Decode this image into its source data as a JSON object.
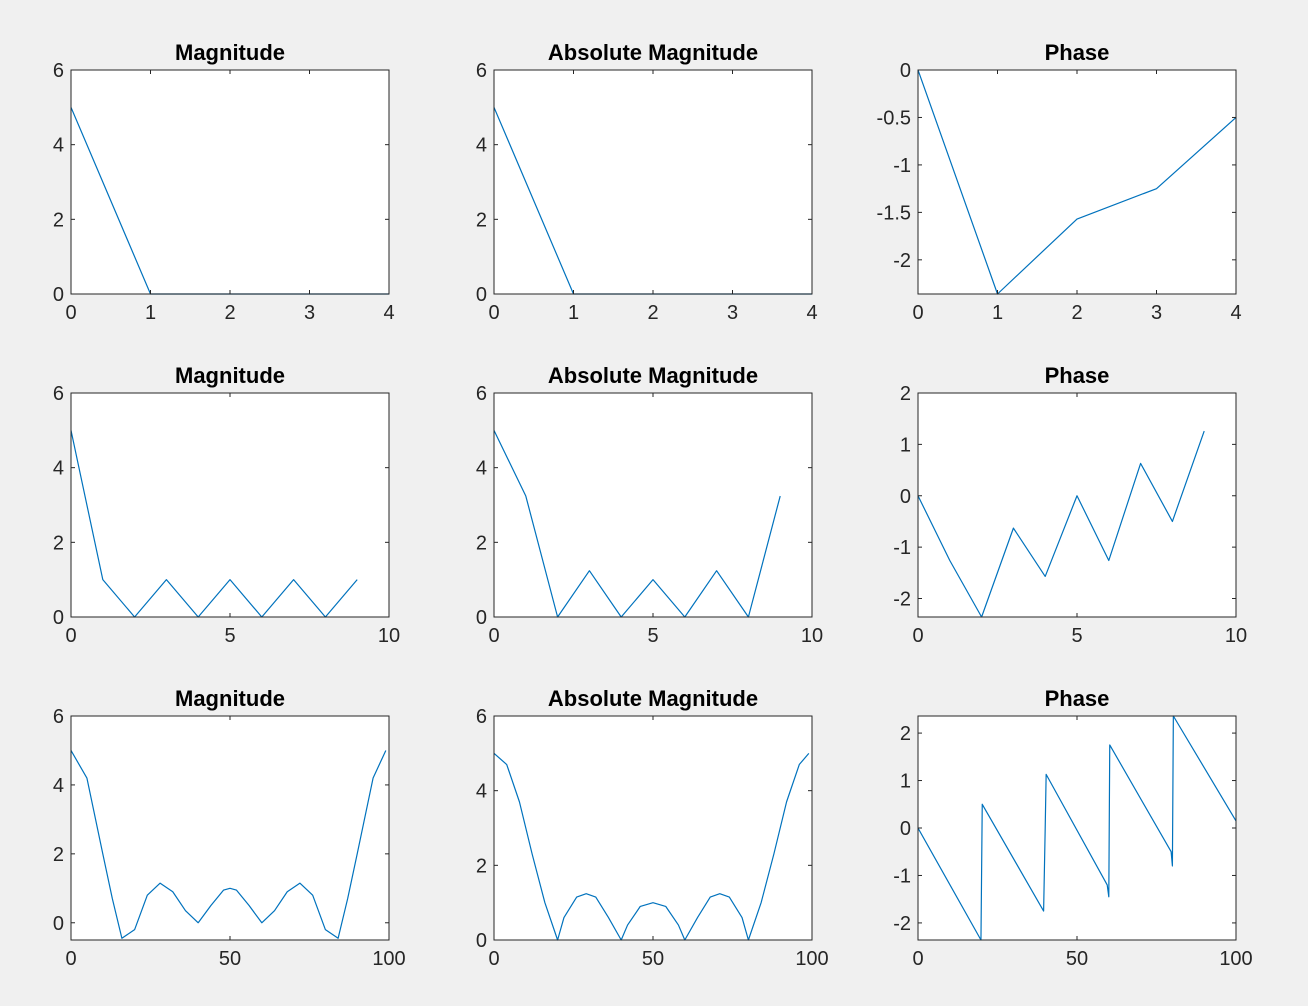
{
  "figure": {
    "background": "#f0f0f0",
    "line_color": "#0072bd",
    "axes_color": "#262626"
  },
  "chart_data": [
    {
      "type": "line",
      "title": "Magnitude",
      "xlabel": "",
      "ylabel": "",
      "xlim": [
        0,
        4
      ],
      "ylim": [
        0,
        6
      ],
      "xticks": [
        0,
        1,
        2,
        3,
        4
      ],
      "yticks": [
        0,
        2,
        4,
        6
      ],
      "series": [
        {
          "x": [
            0,
            1,
            2,
            3,
            4
          ],
          "y": [
            5,
            0,
            0,
            0,
            0
          ]
        }
      ]
    },
    {
      "type": "line",
      "title": "Absolute Magnitude",
      "xlabel": "",
      "ylabel": "",
      "xlim": [
        0,
        4
      ],
      "ylim": [
        0,
        6
      ],
      "xticks": [
        0,
        1,
        2,
        3,
        4
      ],
      "yticks": [
        0,
        2,
        4,
        6
      ],
      "series": [
        {
          "x": [
            0,
            1,
            2,
            3,
            4
          ],
          "y": [
            5,
            0,
            0,
            0,
            0
          ]
        }
      ]
    },
    {
      "type": "line",
      "title": "Phase",
      "xlabel": "",
      "ylabel": "",
      "xlim": [
        0,
        4
      ],
      "ylim": [
        -2.36,
        0
      ],
      "xticks": [
        0,
        1,
        2,
        3,
        4
      ],
      "yticks": [
        -2,
        -1.5,
        -1,
        -0.5,
        0
      ],
      "series": [
        {
          "x": [
            0,
            1,
            2,
            3,
            4
          ],
          "y": [
            0,
            -2.36,
            -1.57,
            -1.25,
            -0.5
          ]
        }
      ]
    },
    {
      "type": "line",
      "title": "Magnitude",
      "xlabel": "",
      "ylabel": "",
      "xlim": [
        0,
        10
      ],
      "ylim": [
        0,
        6
      ],
      "xticks": [
        0,
        5,
        10
      ],
      "yticks": [
        0,
        2,
        4,
        6
      ],
      "series": [
        {
          "x": [
            0,
            1,
            2,
            3,
            4,
            5,
            6,
            7,
            8,
            9
          ],
          "y": [
            5,
            1,
            0,
            1,
            0,
            1,
            0,
            1,
            0,
            1
          ]
        }
      ]
    },
    {
      "type": "line",
      "title": "Absolute Magnitude",
      "xlabel": "",
      "ylabel": "",
      "xlim": [
        0,
        10
      ],
      "ylim": [
        0,
        6
      ],
      "xticks": [
        0,
        5,
        10
      ],
      "yticks": [
        0,
        2,
        4,
        6
      ],
      "series": [
        {
          "x": [
            0,
            1,
            2,
            3,
            4,
            5,
            6,
            7,
            8,
            9
          ],
          "y": [
            5,
            3.24,
            0,
            1.24,
            0,
            1,
            0,
            1.24,
            0,
            3.24
          ]
        }
      ]
    },
    {
      "type": "line",
      "title": "Phase",
      "xlabel": "",
      "ylabel": "",
      "xlim": [
        0,
        10
      ],
      "ylim": [
        -2.36,
        2
      ],
      "xticks": [
        0,
        5,
        10
      ],
      "yticks": [
        -2,
        -1,
        0,
        1,
        2
      ],
      "series": [
        {
          "x": [
            0,
            1,
            2,
            3,
            4,
            5,
            6,
            7,
            8,
            9
          ],
          "y": [
            0,
            -1.26,
            -2.36,
            -0.63,
            -1.57,
            0,
            -1.26,
            0.63,
            -0.5,
            1.26
          ]
        }
      ]
    },
    {
      "type": "line",
      "title": "Magnitude",
      "xlabel": "",
      "ylabel": "",
      "xlim": [
        0,
        100
      ],
      "ylim": [
        -0.5,
        6
      ],
      "xticks": [
        0,
        50,
        100
      ],
      "yticks": [
        0,
        2,
        4,
        6
      ],
      "series": [
        {
          "x": [
            0,
            5,
            10,
            13,
            16,
            20,
            24,
            28,
            32,
            36,
            40,
            44,
            48,
            50,
            52,
            56,
            60,
            64,
            68,
            72,
            76,
            80,
            84,
            87,
            90,
            95,
            99
          ],
          "y": [
            5,
            4.2,
            2.0,
            0.7,
            -0.45,
            -0.2,
            0.8,
            1.15,
            0.9,
            0.35,
            0,
            0.5,
            0.95,
            1,
            0.95,
            0.5,
            0,
            0.35,
            0.9,
            1.15,
            0.8,
            -0.2,
            -0.45,
            0.7,
            2.0,
            4.2,
            5
          ]
        }
      ]
    },
    {
      "type": "line",
      "title": "Absolute Magnitude",
      "xlabel": "",
      "ylabel": "",
      "xlim": [
        0,
        100
      ],
      "ylim": [
        0,
        6
      ],
      "xticks": [
        0,
        50,
        100
      ],
      "yticks": [
        0,
        2,
        4,
        6
      ],
      "series": [
        {
          "x": [
            0,
            4,
            8,
            12,
            16,
            20,
            22,
            26,
            29,
            32,
            36,
            40,
            42,
            46,
            50,
            54,
            58,
            60,
            64,
            68,
            71,
            74,
            78,
            80,
            84,
            88,
            92,
            96,
            99
          ],
          "y": [
            5,
            4.7,
            3.7,
            2.3,
            1.0,
            0,
            0.6,
            1.15,
            1.24,
            1.15,
            0.6,
            0,
            0.4,
            0.9,
            1,
            0.9,
            0.4,
            0,
            0.6,
            1.15,
            1.24,
            1.15,
            0.6,
            0,
            1.0,
            2.3,
            3.7,
            4.7,
            5
          ]
        }
      ]
    },
    {
      "type": "line",
      "title": "Phase",
      "xlabel": "",
      "ylabel": "",
      "xlim": [
        0,
        100
      ],
      "ylim": [
        -2.36,
        2.36
      ],
      "xticks": [
        0,
        50,
        100
      ],
      "yticks": [
        -2,
        -1,
        0,
        1,
        2
      ],
      "series": [
        {
          "x": [
            0,
            19.8,
            20.2,
            39.5,
            40,
            40.3,
            59.5,
            60,
            60.3,
            79.6,
            80,
            80.3,
            100
          ],
          "y": [
            0,
            -2.36,
            0.5,
            -1.75,
            0,
            1.13,
            -1.2,
            -1.45,
            1.75,
            -0.5,
            -0.8,
            2.36,
            0.15
          ]
        }
      ]
    }
  ]
}
